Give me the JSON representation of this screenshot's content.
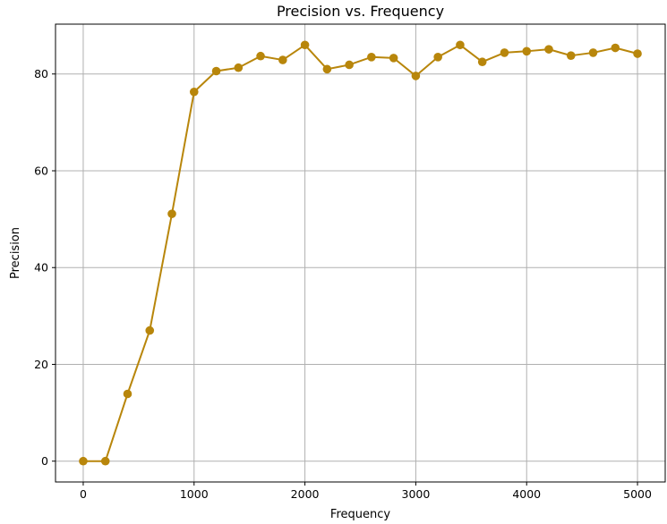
{
  "chart_data": {
    "type": "line",
    "title": "Precision vs. Frequency",
    "xlabel": "Frequency",
    "ylabel": "Precision",
    "xlim": [
      -250,
      5250
    ],
    "ylim": [
      -4.3,
      90.3
    ],
    "xticks": [
      0,
      1000,
      2000,
      3000,
      4000,
      5000
    ],
    "yticks": [
      0,
      20,
      40,
      60,
      80
    ],
    "xtick_labels": [
      "0",
      "1000",
      "2000",
      "3000",
      "4000",
      "5000"
    ],
    "ytick_labels": [
      "0",
      "20",
      "40",
      "60",
      "80"
    ],
    "grid": true,
    "legend": "none",
    "color": "#b8860b",
    "series": [
      {
        "x": [
          0,
          200,
          400,
          600,
          800,
          1000,
          1200,
          1400,
          1600,
          1800,
          2000,
          2200,
          2400,
          2600,
          2800,
          3000,
          3200,
          3400,
          3600,
          3800,
          4000,
          4200,
          4400,
          4600,
          4800,
          5000
        ],
        "y": [
          0.0,
          0.0,
          13.9,
          27.0,
          51.1,
          76.3,
          80.6,
          81.3,
          83.7,
          82.9,
          86.0,
          81.0,
          81.9,
          83.5,
          83.3,
          79.6,
          83.5,
          86.0,
          82.5,
          84.4,
          84.7,
          85.1,
          83.8,
          84.4,
          85.4,
          84.2
        ]
      }
    ]
  }
}
